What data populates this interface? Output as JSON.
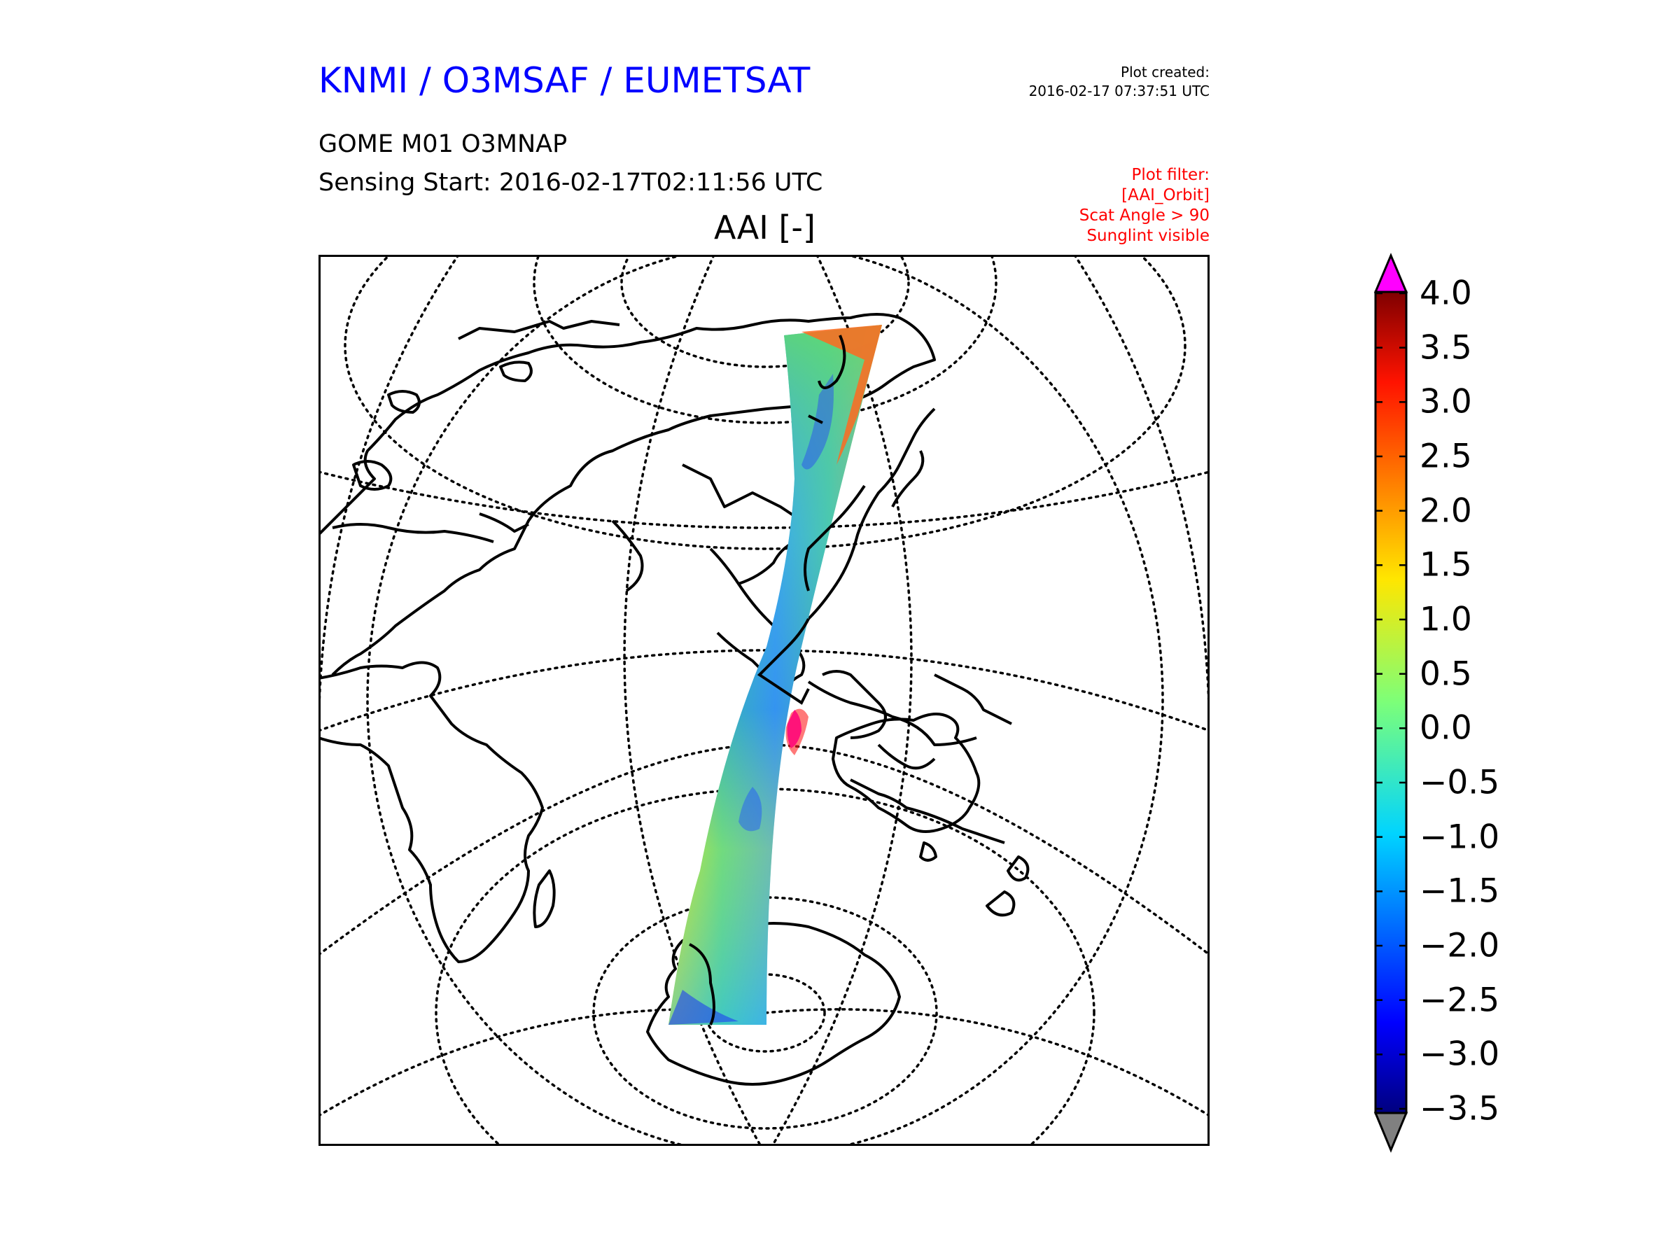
{
  "header": {
    "org_title": "KNMI / O3MSAF / EUMETSAT",
    "created_label": "Plot created:",
    "created_value": "2016-02-17 07:37:51 UTC",
    "product": "GOME M01 O3MNAP",
    "sensing_start": "Sensing Start: 2016-02-17T02:11:56 UTC",
    "filter_lines": [
      "Plot filter:",
      "[AAI_Orbit]",
      "Scat Angle > 90",
      "Sunglint visible"
    ]
  },
  "map": {
    "title": "AAI [-]",
    "projection": "near-sided perspective centered on the Indian Ocean / Asia",
    "coastline_color": "#000000",
    "graticule_style": "dotted"
  },
  "colorbar": {
    "ticks": [
      "4.0",
      "3.5",
      "3.0",
      "2.5",
      "2.0",
      "1.5",
      "1.0",
      "0.5",
      "0.0",
      "−0.5",
      "−1.0",
      "−1.5",
      "−2.0",
      "−2.5",
      "−3.0",
      "−3.5"
    ],
    "min": -3.5,
    "max": 4.0,
    "over_color": "#ff00ff",
    "under_color": "#808080",
    "colormap": "jet"
  }
}
